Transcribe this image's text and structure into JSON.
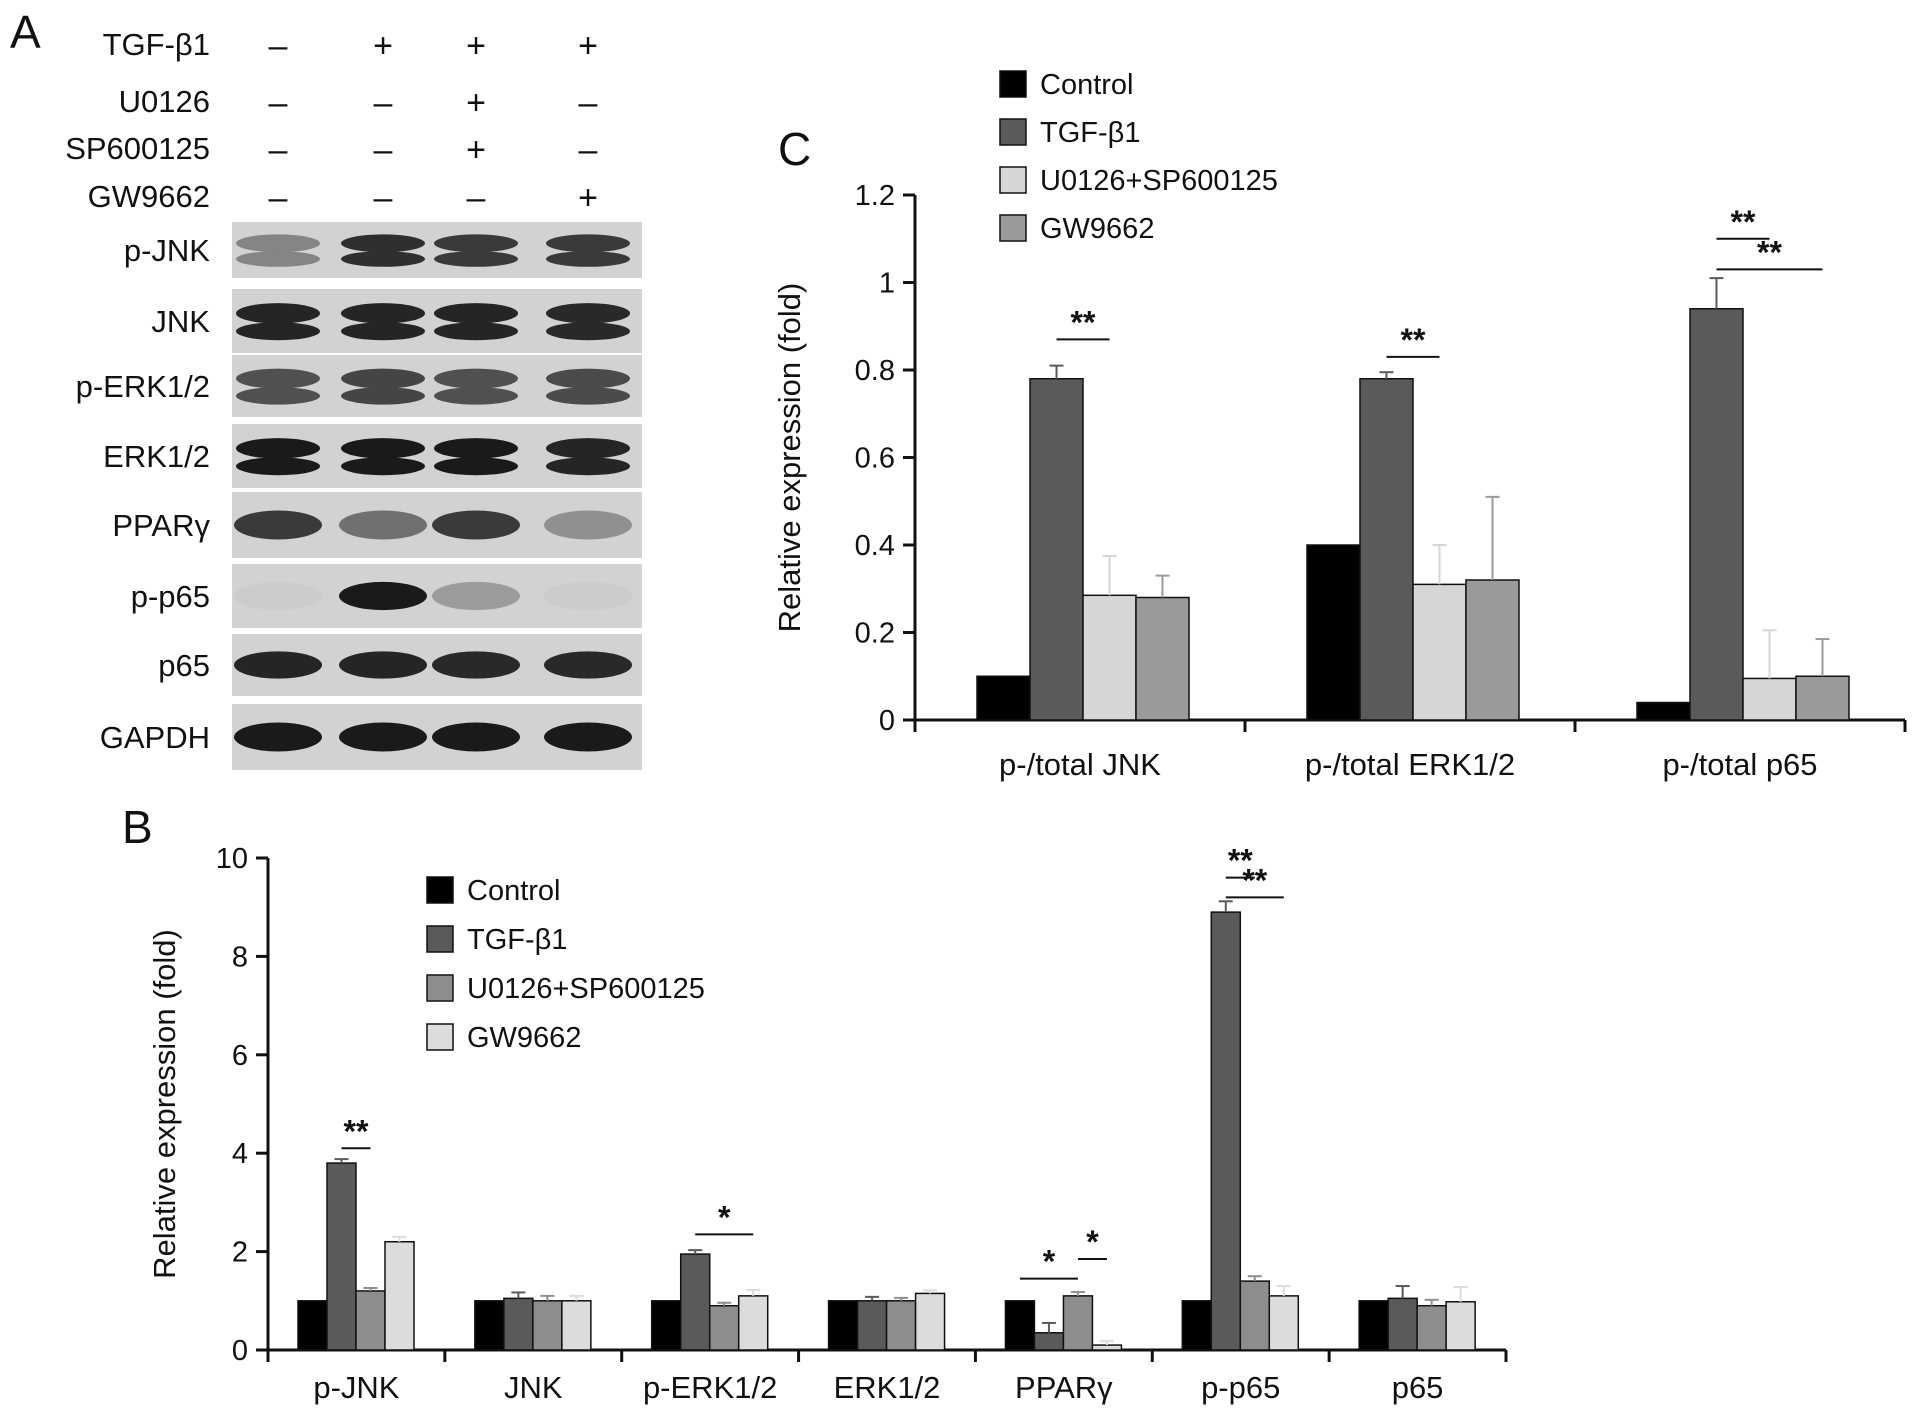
{
  "panels": {
    "a": "A",
    "b": "B",
    "c": "C"
  },
  "blot": {
    "treatments": [
      {
        "name": "TGF-β1",
        "signs": [
          "–",
          "+",
          "+",
          "+"
        ]
      },
      {
        "name": "U0126",
        "signs": [
          "–",
          "–",
          "+",
          "–"
        ]
      },
      {
        "name": "SP600125",
        "signs": [
          "–",
          "–",
          "+",
          "–"
        ]
      },
      {
        "name": "GW9662",
        "signs": [
          "–",
          "–",
          "–",
          "+"
        ]
      }
    ],
    "bands": [
      {
        "label": "p-JNK",
        "intensity": [
          0.45,
          0.85,
          0.8,
          0.8
        ],
        "double": true
      },
      {
        "label": "JNK",
        "intensity": [
          0.9,
          0.9,
          0.9,
          0.88
        ],
        "double": true
      },
      {
        "label": "p-ERK1/2",
        "intensity": [
          0.7,
          0.75,
          0.7,
          0.72
        ],
        "double": true
      },
      {
        "label": "ERK1/2",
        "intensity": [
          0.95,
          0.95,
          0.95,
          0.9
        ],
        "double": true
      },
      {
        "label": "PPARγ",
        "intensity": [
          0.8,
          0.55,
          0.8,
          0.4
        ],
        "double": false
      },
      {
        "label": "p-p65",
        "intensity": [
          0.12,
          0.95,
          0.35,
          0.12
        ],
        "double": false
      },
      {
        "label": "p65",
        "intensity": [
          0.9,
          0.9,
          0.88,
          0.88
        ],
        "double": false
      },
      {
        "label": "GAPDH",
        "intensity": [
          0.95,
          0.95,
          0.95,
          0.95
        ],
        "double": false
      }
    ]
  },
  "chart_data": [
    {
      "id": "B",
      "type": "bar",
      "title": "",
      "xlabel": "",
      "ylabel": "Relative expression (fold)",
      "ylim": [
        0,
        10
      ],
      "yticks": [
        0,
        2,
        4,
        6,
        8,
        10
      ],
      "categories": [
        "p-JNK",
        "JNK",
        "p-ERK1/2",
        "ERK1/2",
        "PPARγ",
        "p-p65",
        "p65"
      ],
      "series": [
        {
          "name": "Control",
          "color": "#000000",
          "values": [
            1.0,
            1.0,
            1.0,
            1.0,
            1.0,
            1.0,
            1.0
          ],
          "errors": [
            0,
            0,
            0,
            0,
            0,
            0,
            0
          ]
        },
        {
          "name": "TGF-β1",
          "color": "#5a5a5a",
          "values": [
            3.8,
            1.05,
            1.95,
            1.0,
            0.35,
            8.9,
            1.05
          ],
          "errors": [
            0.08,
            0.12,
            0.08,
            0.08,
            0.2,
            0.22,
            0.25
          ]
        },
        {
          "name": "U0126+SP600125",
          "color": "#8d8d8d",
          "values": [
            1.2,
            1.0,
            0.9,
            1.0,
            1.1,
            1.4,
            0.9
          ],
          "errors": [
            0.06,
            0.1,
            0.06,
            0.06,
            0.08,
            0.1,
            0.12
          ]
        },
        {
          "name": "GW9662",
          "color": "#dcdcdc",
          "values": [
            2.2,
            1.0,
            1.1,
            1.15,
            0.1,
            1.1,
            0.98
          ],
          "errors": [
            0.1,
            0.1,
            0.12,
            0.06,
            0.08,
            0.2,
            0.3
          ]
        }
      ],
      "legend": "top-center",
      "significance": [
        {
          "text": "**",
          "category": 0,
          "from": 1,
          "to": 2,
          "y": 4.1
        },
        {
          "text": "*",
          "category": 2,
          "from": 1,
          "to": 3,
          "y": 2.35
        },
        {
          "text": "*",
          "category": 4,
          "from": 0,
          "to": 2,
          "y": 1.45
        },
        {
          "text": "*",
          "category": 4,
          "from": 2,
          "to": 3,
          "y": 1.85
        },
        {
          "text": "**",
          "category": 5,
          "from": 1,
          "to": 2,
          "y": 9.6
        },
        {
          "text": "**",
          "category": 5,
          "from": 1,
          "to": 3,
          "y": 9.2
        }
      ]
    },
    {
      "id": "C",
      "type": "bar",
      "title": "",
      "xlabel": "",
      "ylabel": "Relative expression (fold)",
      "ylim": [
        0,
        1.2
      ],
      "yticks": [
        0,
        0.2,
        0.4,
        0.6,
        0.8,
        1,
        1.2
      ],
      "categories": [
        "p-/total JNK",
        "p-/total ERK1/2",
        "p-/total p65"
      ],
      "series": [
        {
          "name": "Control",
          "color": "#000000",
          "values": [
            0.1,
            0.4,
            0.04
          ],
          "errors": [
            0,
            0,
            0
          ]
        },
        {
          "name": "TGF-β1",
          "color": "#5a5a5a",
          "values": [
            0.78,
            0.78,
            0.94
          ],
          "errors": [
            0.03,
            0.015,
            0.07
          ]
        },
        {
          "name": "U0126+SP600125",
          "color": "#d6d6d6",
          "values": [
            0.285,
            0.31,
            0.095
          ],
          "errors": [
            0.09,
            0.09,
            0.11
          ]
        },
        {
          "name": "GW9662",
          "color": "#9a9a9a",
          "values": [
            0.28,
            0.32,
            0.1
          ],
          "errors": [
            0.05,
            0.19,
            0.085
          ]
        }
      ],
      "legend": "top-left",
      "significance": [
        {
          "text": "**",
          "category": 0,
          "from": 1,
          "to": 2,
          "y": 0.87
        },
        {
          "text": "**",
          "category": 1,
          "from": 1,
          "to": 2,
          "y": 0.83
        },
        {
          "text": "**",
          "category": 2,
          "from": 1,
          "to": 2,
          "y": 1.1
        },
        {
          "text": "**",
          "category": 2,
          "from": 1,
          "to": 3,
          "y": 1.03
        }
      ]
    }
  ]
}
